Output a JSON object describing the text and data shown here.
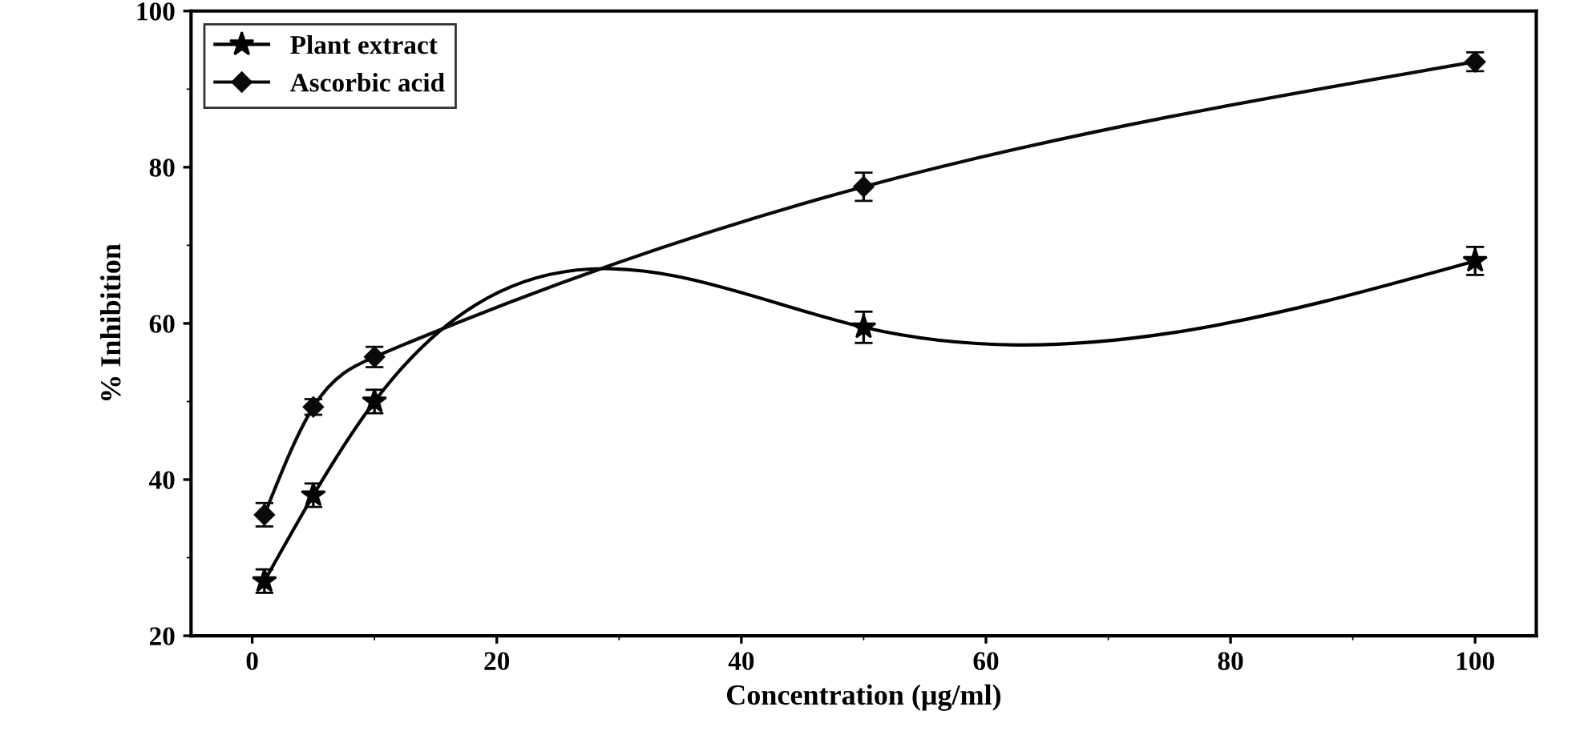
{
  "chart_data": {
    "type": "line",
    "xlabel": "Concentration (μg/ml)",
    "ylabel": "% Inhibition",
    "x": [
      1,
      5,
      10,
      50,
      100
    ],
    "series": [
      {
        "name": "Plant extract",
        "color": "#000000",
        "marker": "star",
        "values": [
          27,
          38,
          50,
          59.5,
          68
        ],
        "errors": [
          1.5,
          1.5,
          1.5,
          2,
          1.8
        ]
      },
      {
        "name": "Ascorbic acid",
        "color": "#0a0a0a",
        "marker": "diamond",
        "values": [
          35.5,
          49.3,
          55.7,
          77.5,
          93.5
        ],
        "errors": [
          1.5,
          1,
          1.3,
          1.8,
          1.2
        ]
      }
    ],
    "xlim": [
      -5,
      105
    ],
    "xticks": [
      0,
      20,
      40,
      60,
      80,
      100
    ],
    "ylim": [
      20,
      100
    ],
    "yticks": [
      20,
      40,
      60,
      80,
      100
    ],
    "grid": false,
    "legend": "top left",
    "line_style": "solid"
  }
}
